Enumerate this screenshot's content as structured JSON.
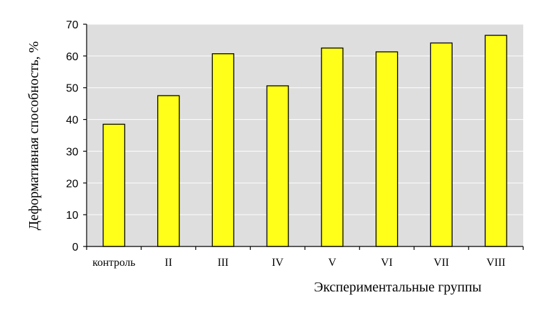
{
  "chart_data": {
    "type": "bar",
    "title": "",
    "xlabel": "Экспериментальные группы",
    "ylabel": "Деформативная способность, %",
    "categories": [
      "контроль",
      "II",
      "III",
      "IV",
      "V",
      "VI",
      "VII",
      "VIII"
    ],
    "values": [
      38.5,
      47.5,
      60.7,
      50.6,
      62.5,
      61.3,
      64.1,
      66.5
    ],
    "ylim": [
      0,
      70
    ],
    "yticks": [
      "0",
      "10",
      "20",
      "30",
      "40",
      "50",
      "60",
      "70"
    ],
    "grid": true,
    "legend": "none",
    "colors": {
      "bar_fill": "#ffff1a",
      "bar_stroke": "#000000",
      "plot_background": "#dedede",
      "gridline": "#ffffff"
    }
  }
}
